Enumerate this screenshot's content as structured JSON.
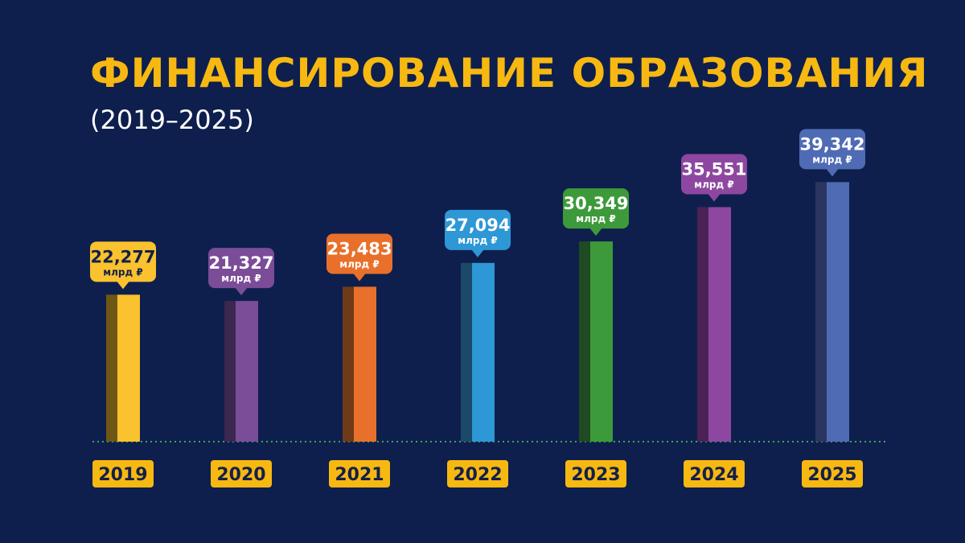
{
  "header": {
    "title": "ФИНАНСИРОВАНИЕ ОБРАЗОВАНИЯ",
    "subtitle": "(2019–2025)"
  },
  "chart_data": {
    "type": "bar",
    "categories": [
      "2019",
      "2020",
      "2021",
      "2022",
      "2023",
      "2024",
      "2025"
    ],
    "values": [
      22.277,
      21.327,
      23.483,
      27.094,
      30.349,
      35.551,
      39.342
    ],
    "value_labels": [
      "22,277",
      "21,327",
      "23,483",
      "27,094",
      "30,349",
      "35,551",
      "39,342"
    ],
    "unit_label": "млрд ₽",
    "title": "ФИНАНСИРОВАНИЕ ОБРАЗОВАНИЯ",
    "subtitle": "(2019–2025)",
    "colors": [
      "#f9c22e",
      "#7b4c98",
      "#e9702a",
      "#2e97d6",
      "#3d9a3a",
      "#8e47a0",
      "#4f6bb4"
    ],
    "shade_colors": [
      "#6e5714",
      "#3b2750",
      "#6e3a1a",
      "#1a4a68",
      "#1f4a22",
      "#4a2256",
      "#2b3560"
    ],
    "label_text_colors": [
      "#14204a",
      "#ffffff",
      "#ffffff",
      "#ffffff",
      "#ffffff",
      "#ffffff",
      "#ffffff"
    ],
    "year_badge_color": "#f7b812",
    "baseline_color": "#3aa55a",
    "grid": false,
    "legend": "none"
  }
}
